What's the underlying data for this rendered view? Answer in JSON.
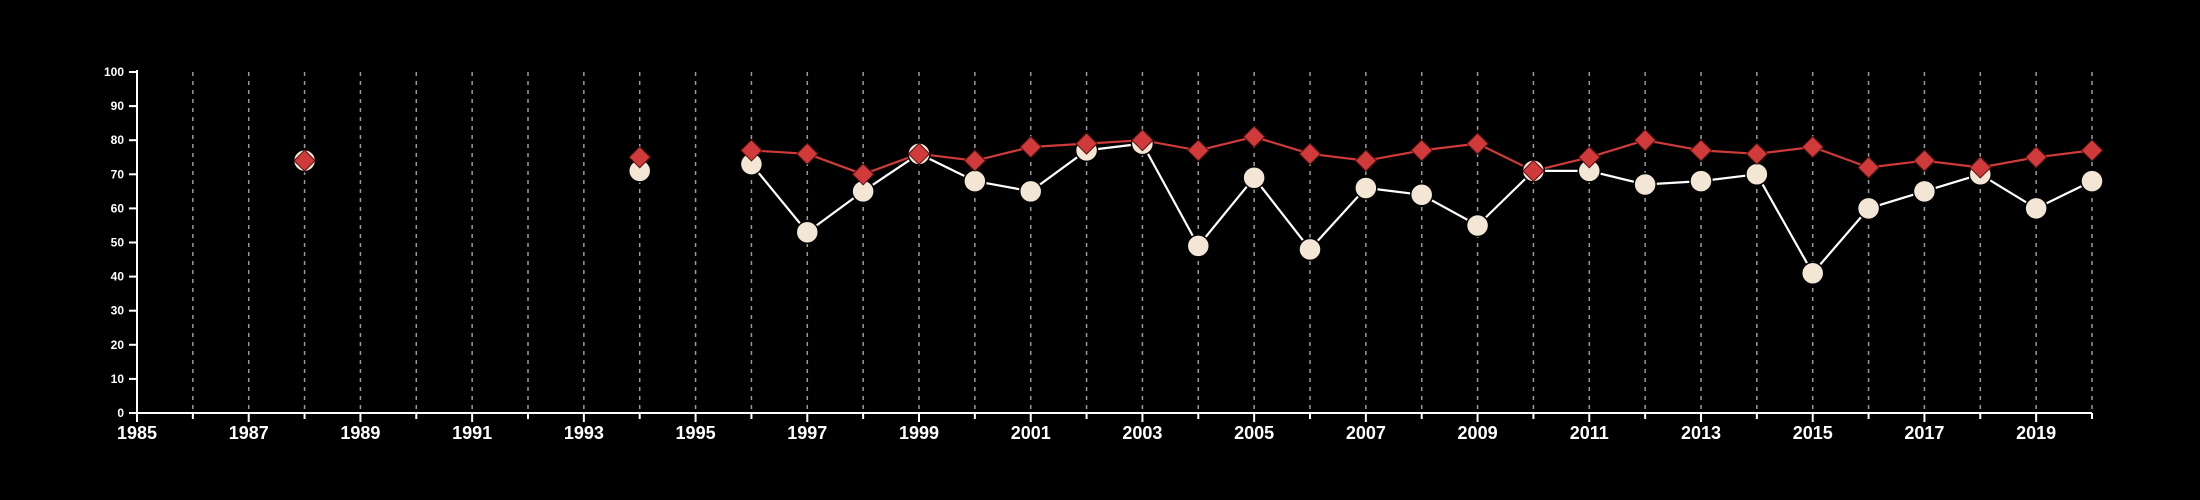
{
  "chart_data": {
    "type": "line",
    "title": "",
    "xlabel": "",
    "ylabel": "",
    "xlim": [
      1985,
      2020
    ],
    "ylim": [
      0,
      100
    ],
    "y_ticks": [
      0,
      10,
      20,
      30,
      40,
      50,
      60,
      70,
      80,
      90,
      100
    ],
    "x_tick_labels": [
      1985,
      1987,
      1989,
      1991,
      1993,
      1995,
      1997,
      1999,
      2001,
      2003,
      2005,
      2007,
      2009,
      2011,
      2013,
      2015,
      2017,
      2019
    ],
    "grid": "vertical dashed at each year",
    "colors": {
      "background": "#000000",
      "axis": "#ffffff",
      "grid": "#9a9a9a"
    },
    "series": [
      {
        "marker": "circle",
        "color": "#f3e6d4",
        "line_color": "#ffffff",
        "points": [
          {
            "x": 1988,
            "y": 74
          },
          {
            "x": 1994,
            "y": 71
          },
          {
            "x": 1996,
            "y": 73
          },
          {
            "x": 1997,
            "y": 53
          },
          {
            "x": 1998,
            "y": 65
          },
          {
            "x": 1999,
            "y": 76
          },
          {
            "x": 2000,
            "y": 68
          },
          {
            "x": 2001,
            "y": 65
          },
          {
            "x": 2002,
            "y": 77
          },
          {
            "x": 2003,
            "y": 79
          },
          {
            "x": 2004,
            "y": 49
          },
          {
            "x": 2005,
            "y": 69
          },
          {
            "x": 2006,
            "y": 48
          },
          {
            "x": 2007,
            "y": 66
          },
          {
            "x": 2008,
            "y": 64
          },
          {
            "x": 2009,
            "y": 55
          },
          {
            "x": 2010,
            "y": 71
          },
          {
            "x": 2011,
            "y": 71
          },
          {
            "x": 2012,
            "y": 67
          },
          {
            "x": 2013,
            "y": 68
          },
          {
            "x": 2014,
            "y": 70
          },
          {
            "x": 2015,
            "y": 41
          },
          {
            "x": 2016,
            "y": 60
          },
          {
            "x": 2017,
            "y": 65
          },
          {
            "x": 2018,
            "y": 70
          },
          {
            "x": 2019,
            "y": 60
          },
          {
            "x": 2020,
            "y": 68
          }
        ]
      },
      {
        "marker": "diamond",
        "color": "#d03a3a",
        "line_color": "#d03a3a",
        "points": [
          {
            "x": 1988,
            "y": 74
          },
          {
            "x": 1994,
            "y": 75
          },
          {
            "x": 1996,
            "y": 77
          },
          {
            "x": 1997,
            "y": 76
          },
          {
            "x": 1998,
            "y": 70
          },
          {
            "x": 1999,
            "y": 76
          },
          {
            "x": 2000,
            "y": 74
          },
          {
            "x": 2001,
            "y": 78
          },
          {
            "x": 2002,
            "y": 79
          },
          {
            "x": 2003,
            "y": 80
          },
          {
            "x": 2004,
            "y": 77
          },
          {
            "x": 2005,
            "y": 81
          },
          {
            "x": 2006,
            "y": 76
          },
          {
            "x": 2007,
            "y": 74
          },
          {
            "x": 2008,
            "y": 77
          },
          {
            "x": 2009,
            "y": 79
          },
          {
            "x": 2010,
            "y": 71
          },
          {
            "x": 2011,
            "y": 75
          },
          {
            "x": 2012,
            "y": 80
          },
          {
            "x": 2013,
            "y": 77
          },
          {
            "x": 2014,
            "y": 76
          },
          {
            "x": 2015,
            "y": 78
          },
          {
            "x": 2016,
            "y": 72
          },
          {
            "x": 2017,
            "y": 74
          },
          {
            "x": 2018,
            "y": 72
          },
          {
            "x": 2019,
            "y": 75
          },
          {
            "x": 2020,
            "y": 77
          }
        ]
      }
    ]
  }
}
